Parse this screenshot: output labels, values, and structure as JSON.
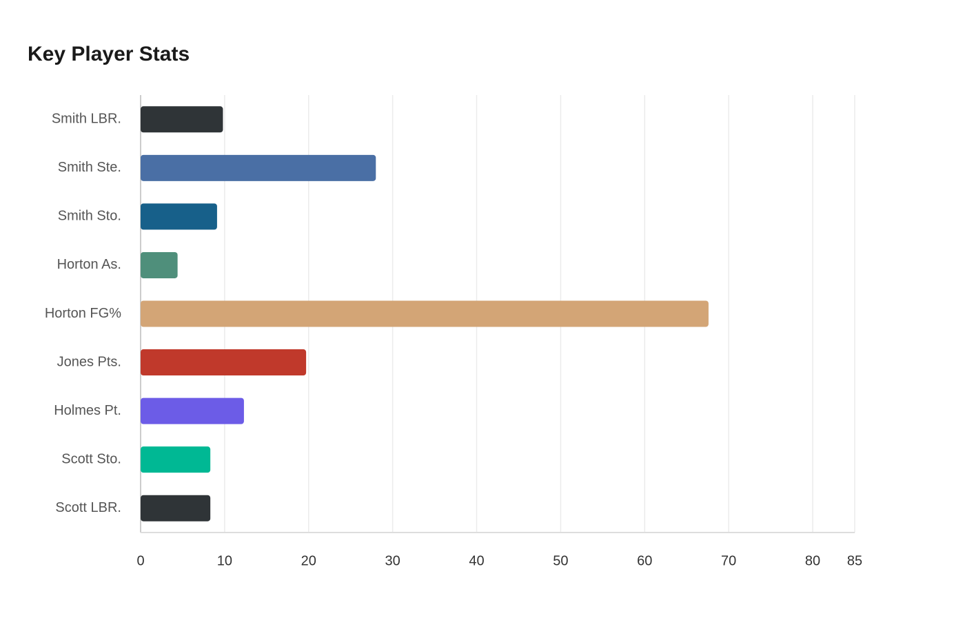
{
  "chart_data": {
    "type": "bar",
    "orientation": "horizontal",
    "title": "Key Player Stats",
    "categories": [
      "Smith LBR.",
      "Smith Ste.",
      "Smith Sto.",
      "Horton As.",
      "Horton FG%",
      "Jones Pts.",
      "Holmes Pt.",
      "Scott Sto.",
      "Scott LBR."
    ],
    "values": [
      9.8,
      28,
      9.1,
      4.4,
      67.6,
      19.7,
      12.3,
      8.3,
      8.3
    ],
    "colors": [
      "#2f3437",
      "#4a6fa5",
      "#17608a",
      "#4f8f7b",
      "#d3a576",
      "#c0392b",
      "#6c5ce7",
      "#00b894",
      "#2f3437"
    ],
    "xlim": [
      0,
      85
    ],
    "xticks": [
      0,
      10,
      20,
      30,
      40,
      50,
      60,
      70,
      80,
      85
    ],
    "grid": true
  }
}
